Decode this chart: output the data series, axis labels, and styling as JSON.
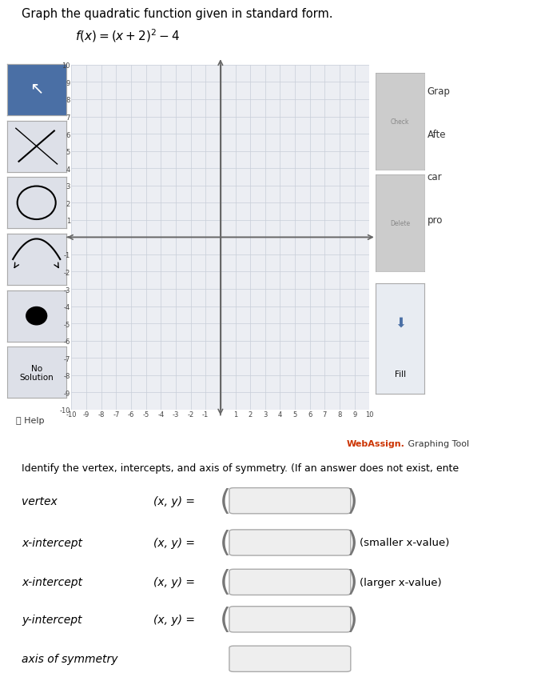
{
  "title_line1": "Graph the quadratic function given in standard form.",
  "graph_xlim": [
    -10,
    10
  ],
  "graph_ylim": [
    -10,
    10
  ],
  "grid_color": "#c8cdd8",
  "axis_color": "#666666",
  "graph_bg": "#eceef3",
  "panel_bg": "#c8ccd4",
  "outer_border": "#a0a4ac",
  "webassign_text": "WebAssign.",
  "webassign_color": "#cc3300",
  "graphing_tool_text": " Graphing Tool",
  "identify_text": "Identify the vertex, intercepts, and axis of symmetry. (If an answer does not exist, ente",
  "no_solution_text": "No\nSolution",
  "help_text": "ⓘ Help",
  "fill_text": "Fill",
  "right_texts": [
    "Grap",
    "Afte",
    "car",
    "pro"
  ],
  "btn1_color": "#4a6fa5",
  "btn_color": "#dde0e8",
  "btn_border": "#aaaaaa",
  "rows": [
    {
      "label": "vertex",
      "xy": true,
      "note": ""
    },
    {
      "label": "x-intercept",
      "xy": true,
      "note": "(smaller x-value)"
    },
    {
      "label": "x-intercept",
      "xy": true,
      "note": "(larger x-value)"
    },
    {
      "label": "y-intercept",
      "xy": true,
      "note": ""
    },
    {
      "label": "axis of symmetry",
      "xy": false,
      "note": ""
    }
  ]
}
